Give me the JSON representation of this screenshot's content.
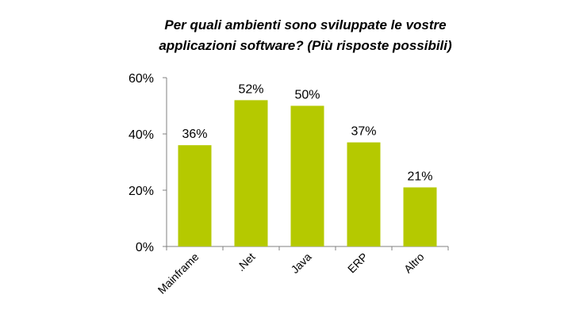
{
  "chart_data": {
    "type": "bar",
    "title_lines": [
      "Per quali ambienti sono sviluppate le vostre",
      "applicazioni software? (Più risposte possibili)"
    ],
    "categories": [
      "Mainframe",
      ".Net",
      "Java",
      "ERP",
      "Altro"
    ],
    "values": [
      36,
      52,
      50,
      37,
      21
    ],
    "data_labels": [
      "36%",
      "52%",
      "50%",
      "37%",
      "21%"
    ],
    "y_ticks": [
      {
        "value": 0,
        "label": "0%"
      },
      {
        "value": 20,
        "label": "20%"
      },
      {
        "value": 40,
        "label": "40%"
      },
      {
        "value": 60,
        "label": "60%"
      }
    ],
    "ylim": [
      0,
      60
    ],
    "grid": false,
    "legend": "none",
    "bar_color": "#B5C900",
    "axis_color": "#808080"
  }
}
